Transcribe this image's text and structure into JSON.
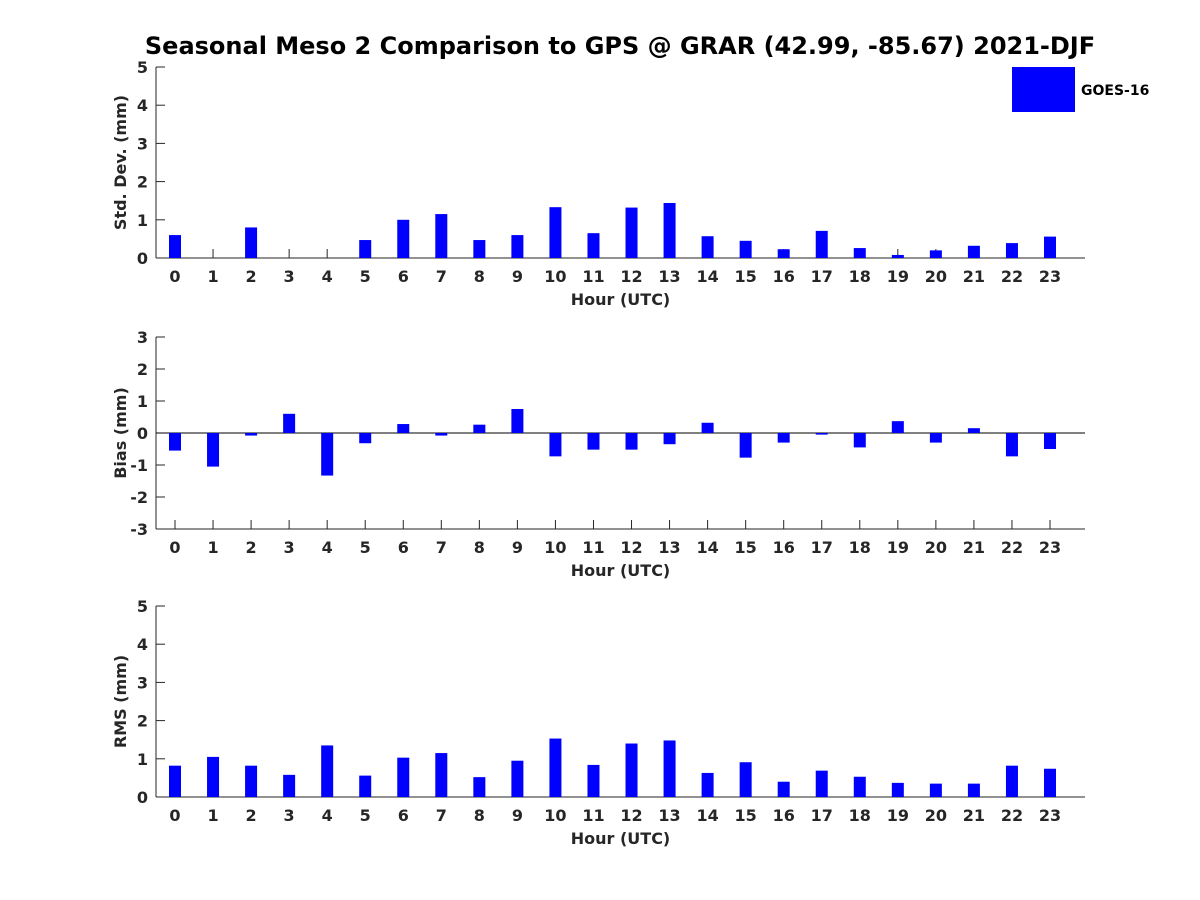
{
  "chart_data": {
    "title": "Seasonal Meso 2 Comparison to GPS @ GRAR (42.99, -85.67) 2021-DJF",
    "legend": {
      "placement": "top-right",
      "entries": [
        "GOES-16"
      ]
    },
    "color": "#0000ff",
    "panels": [
      {
        "type": "bar",
        "ylabel": "Std. Dev. (mm)",
        "xlabel": "Hour (UTC)",
        "ylim": [
          0,
          5
        ],
        "yticks": [
          0,
          1,
          2,
          3,
          4,
          5
        ],
        "categories": [
          "0",
          "1",
          "2",
          "3",
          "4",
          "5",
          "6",
          "7",
          "8",
          "9",
          "10",
          "11",
          "12",
          "13",
          "14",
          "15",
          "16",
          "17",
          "18",
          "19",
          "20",
          "21",
          "22",
          "23"
        ],
        "series": [
          {
            "name": "GOES-16",
            "values": [
              0.6,
              0.0,
              0.8,
              0.0,
              0.0,
              0.47,
              1.0,
              1.15,
              0.47,
              0.6,
              1.33,
              0.65,
              1.32,
              1.44,
              0.57,
              0.45,
              0.23,
              0.71,
              0.26,
              0.08,
              0.2,
              0.32,
              0.39,
              0.56
            ]
          }
        ]
      },
      {
        "type": "bar",
        "ylabel": "Bias (mm)",
        "xlabel": "Hour (UTC)",
        "ylim": [
          -3,
          3
        ],
        "yticks": [
          -3,
          -2,
          -1,
          0,
          1,
          2,
          3
        ],
        "categories": [
          "0",
          "1",
          "2",
          "3",
          "4",
          "5",
          "6",
          "7",
          "8",
          "9",
          "10",
          "11",
          "12",
          "13",
          "14",
          "15",
          "16",
          "17",
          "18",
          "19",
          "20",
          "21",
          "22",
          "23"
        ],
        "series": [
          {
            "name": "GOES-16",
            "values": [
              -0.55,
              -1.05,
              -0.08,
              0.6,
              -1.33,
              -0.32,
              0.28,
              -0.08,
              0.26,
              0.75,
              -0.73,
              -0.52,
              -0.52,
              -0.35,
              0.32,
              -0.77,
              -0.3,
              -0.05,
              -0.45,
              0.37,
              -0.3,
              0.15,
              -0.73,
              -0.5
            ]
          }
        ]
      },
      {
        "type": "bar",
        "ylabel": "RMS (mm)",
        "xlabel": "Hour (UTC)",
        "ylim": [
          0,
          5
        ],
        "yticks": [
          0,
          1,
          2,
          3,
          4,
          5
        ],
        "categories": [
          "0",
          "1",
          "2",
          "3",
          "4",
          "5",
          "6",
          "7",
          "8",
          "9",
          "10",
          "11",
          "12",
          "13",
          "14",
          "15",
          "16",
          "17",
          "18",
          "19",
          "20",
          "21",
          "22",
          "23"
        ],
        "series": [
          {
            "name": "GOES-16",
            "values": [
              0.82,
              1.05,
              0.82,
              0.58,
              1.35,
              0.56,
              1.03,
              1.15,
              0.52,
              0.95,
              1.53,
              0.84,
              1.4,
              1.48,
              0.63,
              0.91,
              0.4,
              0.69,
              0.53,
              0.37,
              0.35,
              0.35,
              0.82,
              0.74
            ]
          }
        ]
      }
    ]
  }
}
